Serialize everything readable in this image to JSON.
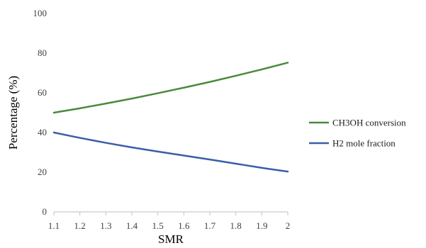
{
  "chart_data": {
    "type": "line",
    "title": "",
    "xlabel": "SMR",
    "ylabel": "Percentage (%)",
    "x": [
      1.1,
      1.2,
      1.3,
      1.4,
      1.5,
      1.6,
      1.7,
      1.8,
      1.9,
      2.0
    ],
    "x_tick_labels": [
      "1.1",
      "1.2",
      "1.3",
      "1.4",
      "1.5",
      "1.6",
      "1.7",
      "1.8",
      "1.9",
      "2"
    ],
    "xlim": [
      1.1,
      2.0
    ],
    "ylim": [
      0,
      100
    ],
    "y_ticks": [
      0,
      20,
      40,
      60,
      80,
      100
    ],
    "grid": false,
    "legend_position": "right",
    "series": [
      {
        "name": "CH3OH conversion",
        "color": "#4a8a3a",
        "values": [
          50.0,
          52.2,
          54.6,
          57.1,
          59.8,
          62.6,
          65.5,
          68.6,
          71.8,
          75.2
        ]
      },
      {
        "name": "H2 mole fraction",
        "color": "#3a5ea8",
        "values": [
          40.0,
          37.3,
          34.8,
          32.5,
          30.4,
          28.4,
          26.4,
          24.3,
          22.2,
          20.3
        ]
      }
    ]
  }
}
